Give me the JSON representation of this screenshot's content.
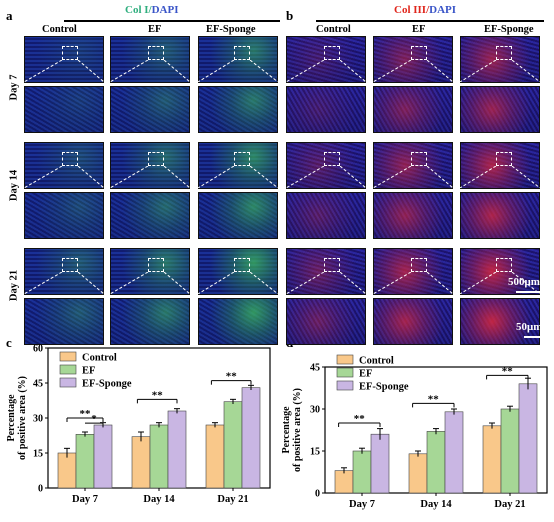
{
  "panel_labels": {
    "a": "a",
    "b": "b",
    "c": "c",
    "d": "d"
  },
  "panel_a": {
    "title_col": "Col I",
    "title_sep": "/",
    "title_dapi": "DAPI",
    "columns": [
      "Control",
      "EF",
      "EF-Sponge"
    ],
    "rows": [
      "Day 7",
      "Day 14",
      "Day 21"
    ]
  },
  "panel_b": {
    "title_col": "Col III",
    "title_sep": "/",
    "title_dapi": "DAPI",
    "columns": [
      "Control",
      "EF",
      "EF-Sponge"
    ],
    "scale_large": "500μm",
    "scale_small": "50μm"
  },
  "colors": {
    "control": "#F9C88A",
    "ef": "#A6D796",
    "ef_sponge": "#C9B6E3",
    "col1_title": "#2FAE7E",
    "col3_title": "#E0261C",
    "dapi_title": "#3A55C8"
  },
  "chart_data": [
    {
      "type": "bar",
      "panel": "c",
      "categories": [
        "Day 7",
        "Day 14",
        "Day 21"
      ],
      "series": [
        {
          "name": "Control",
          "values": [
            15,
            22,
            27
          ],
          "errors": [
            2,
            2,
            1
          ]
        },
        {
          "name": "EF",
          "values": [
            23,
            27,
            37
          ],
          "errors": [
            1,
            1,
            1
          ]
        },
        {
          "name": "EF-Sponge",
          "values": [
            27,
            33,
            43
          ],
          "errors": [
            1,
            1,
            1
          ]
        }
      ],
      "ylabel": "Percentage of positive area (%)",
      "ylim": [
        0,
        60
      ],
      "yticks": [
        0,
        15,
        30,
        45,
        60
      ],
      "significance": [
        "**",
        "*",
        "**",
        "**"
      ]
    },
    {
      "type": "bar",
      "panel": "d",
      "categories": [
        "Day 7",
        "Day 14",
        "Day 21"
      ],
      "series": [
        {
          "name": "Control",
          "values": [
            8,
            14,
            24
          ],
          "errors": [
            1,
            1,
            1
          ]
        },
        {
          "name": "EF",
          "values": [
            15,
            22,
            30
          ],
          "errors": [
            1,
            1,
            1
          ]
        },
        {
          "name": "EF-Sponge",
          "values": [
            21,
            29,
            39
          ],
          "errors": [
            2,
            1,
            2
          ]
        }
      ],
      "ylabel": "Percentage of positive area (%)",
      "ylim": [
        0,
        45
      ],
      "yticks": [
        0,
        15,
        30,
        45
      ],
      "significance": [
        "**",
        "**",
        "**"
      ]
    }
  ]
}
